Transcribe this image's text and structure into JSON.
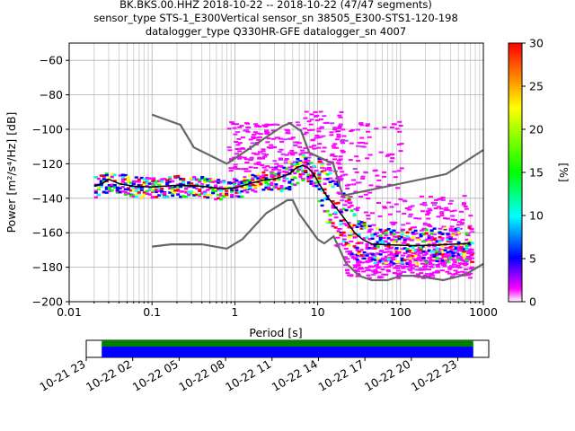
{
  "chart_data": {
    "type": "heatmap",
    "title_lines": [
      "BK.BKS.00.HHZ   2018-10-22 -- 2018-10-22  (47/47 segments)",
      "sensor_type STS-1_E300Vertical sensor_sn 38505_E300-STS1-120-198",
      "datalogger_type Q330HR-GFE datalogger_sn 4007"
    ],
    "xlabel": "Period [s]",
    "ylabel": "Power [m²/s⁴/Hz] [dB]",
    "x_scale": "log",
    "xlim": [
      0.01,
      1000
    ],
    "ylim": [
      -200,
      -50
    ],
    "x_ticks": [
      {
        "value": 0.01,
        "label": "0.01"
      },
      {
        "value": 0.1,
        "label": "0.1"
      },
      {
        "value": 1,
        "label": "1"
      },
      {
        "value": 10,
        "label": "10"
      },
      {
        "value": 100,
        "label": "100"
      },
      {
        "value": 1000,
        "label": "1000"
      }
    ],
    "y_ticks": [
      {
        "value": -60,
        "label": "−60"
      },
      {
        "value": -80,
        "label": "−80"
      },
      {
        "value": -100,
        "label": "−100"
      },
      {
        "value": -120,
        "label": "−120"
      },
      {
        "value": -140,
        "label": "−140"
      },
      {
        "value": -160,
        "label": "−160"
      },
      {
        "value": -180,
        "label": "−180"
      },
      {
        "value": -200,
        "label": "−200"
      }
    ],
    "grid": true,
    "colorbar": {
      "label": "[%]",
      "range": [
        0,
        30
      ],
      "ticks": [
        {
          "value": 0,
          "label": "0"
        },
        {
          "value": 5,
          "label": "5"
        },
        {
          "value": 10,
          "label": "10"
        },
        {
          "value": 15,
          "label": "15"
        },
        {
          "value": 20,
          "label": "20"
        },
        {
          "value": 25,
          "label": "25"
        },
        {
          "value": 30,
          "label": "30"
        }
      ]
    },
    "nhnm": [
      [
        0.1,
        -91.5
      ],
      [
        0.22,
        -97.4
      ],
      [
        0.32,
        -110.5
      ],
      [
        0.8,
        -120
      ],
      [
        3.8,
        -98
      ],
      [
        4.6,
        -96.5
      ],
      [
        6.3,
        -101
      ],
      [
        7.9,
        -113.5
      ],
      [
        15.4,
        -120
      ],
      [
        20,
        -138.5
      ],
      [
        354.8,
        -126
      ],
      [
        1000,
        -112
      ]
    ],
    "nlnm": [
      [
        0.1,
        -168
      ],
      [
        0.17,
        -166.7
      ],
      [
        0.4,
        -166.7
      ],
      [
        0.8,
        -169.2
      ],
      [
        1.24,
        -163.7
      ],
      [
        2.4,
        -148.6
      ],
      [
        4.3,
        -141.1
      ],
      [
        5,
        -141.1
      ],
      [
        6,
        -149
      ],
      [
        10,
        -163.8
      ],
      [
        12,
        -166.2
      ],
      [
        15.6,
        -162.1
      ],
      [
        21.9,
        -177.5
      ],
      [
        31.6,
        -185
      ],
      [
        45,
        -187.5
      ],
      [
        70,
        -187.5
      ],
      [
        101,
        -185
      ],
      [
        154,
        -185
      ],
      [
        328,
        -187.5
      ],
      [
        600,
        -184.4
      ],
      [
        1000,
        -178
      ]
    ],
    "median": [
      [
        0.02,
        -133
      ],
      [
        0.025,
        -131.5
      ],
      [
        0.03,
        -129
      ],
      [
        0.04,
        -131.5
      ],
      [
        0.06,
        -133
      ],
      [
        0.1,
        -133.5
      ],
      [
        0.2,
        -132.5
      ],
      [
        0.4,
        -133
      ],
      [
        0.7,
        -134.5
      ],
      [
        1,
        -134
      ],
      [
        1.5,
        -131.5
      ],
      [
        2.2,
        -129.5
      ],
      [
        3.2,
        -128.5
      ],
      [
        4.5,
        -126
      ],
      [
        5.5,
        -122.5
      ],
      [
        6.5,
        -121
      ],
      [
        7.5,
        -122
      ],
      [
        9,
        -126
      ],
      [
        10.5,
        -132
      ],
      [
        13,
        -139
      ],
      [
        17,
        -146
      ],
      [
        22,
        -153
      ],
      [
        28,
        -160
      ],
      [
        35,
        -164
      ],
      [
        45,
        -166.5
      ],
      [
        70,
        -167
      ],
      [
        150,
        -167.5
      ],
      [
        300,
        -167
      ],
      [
        500,
        -166.5
      ],
      [
        700,
        -166
      ]
    ],
    "density_bands": [
      {
        "xmin": 0.02,
        "xmax": 0.1,
        "ymin": -139,
        "ymax": -127
      },
      {
        "xmin": 0.1,
        "xmax": 1,
        "ymin": -139,
        "ymax": -127
      },
      {
        "xmin": 1,
        "xmax": 3,
        "ymin": -137,
        "ymax": -126
      },
      {
        "xmin": 3,
        "xmax": 10,
        "ymin": -134,
        "ymax": -118
      },
      {
        "xmin": 10,
        "xmax": 30,
        "ymin": -160,
        "ymax": -128
      },
      {
        "xmin": 30,
        "xmax": 700,
        "ymin": -184,
        "ymax": -163
      }
    ],
    "scatter_cloud": [
      {
        "xmin": 0.8,
        "xmax": 5,
        "ymin": -125,
        "ymax": -95
      },
      {
        "xmin": 5,
        "xmax": 20,
        "ymin": -130,
        "ymax": -89
      },
      {
        "xmin": 15,
        "xmax": 100,
        "ymin": -170,
        "ymax": -95
      },
      {
        "xmin": 100,
        "xmax": 700,
        "ymin": -175,
        "ymax": -138
      },
      {
        "xmin": 20,
        "xmax": 700,
        "ymin": -186,
        "ymax": -170
      }
    ],
    "timeline": {
      "ticks": [
        "10-21 23",
        "10-22 02",
        "10-22 05",
        "10-22 08",
        "10-22 11",
        "10-22 14",
        "10-22 17",
        "10-22 20",
        "10-22 23"
      ],
      "data_start_hour": 0,
      "data_end_hour": 24,
      "axis_start_hour": -1,
      "axis_end_hour": 25,
      "colors": {
        "data": "#0000ff",
        "gap": "#008000"
      }
    }
  }
}
